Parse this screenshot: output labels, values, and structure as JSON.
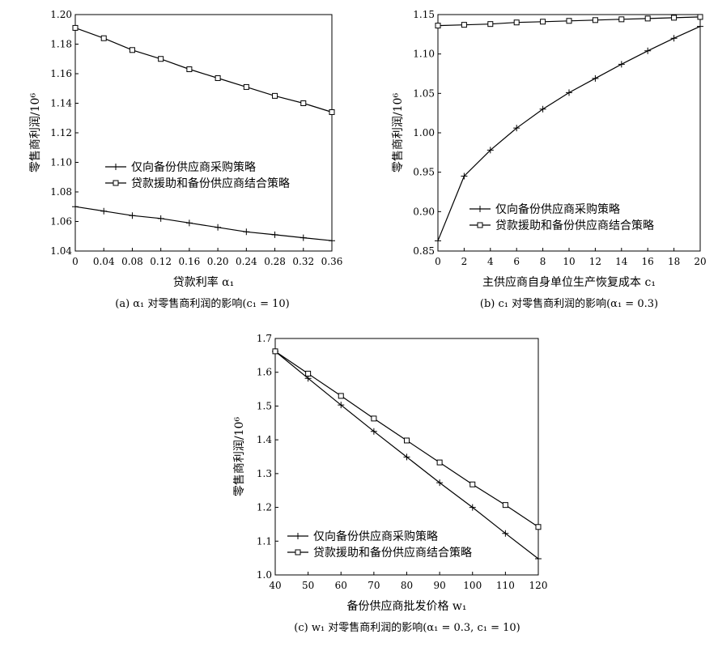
{
  "chart_data": [
    {
      "type": "line",
      "caption": "(a) α₁ 对零售商利润的影响(c₁ = 10)",
      "xlabel": "贷款利率 α₁",
      "ylabel": "零售商利润/10⁶",
      "xlim": [
        0,
        0.36
      ],
      "ylim": [
        1.04,
        1.2
      ],
      "xticks": [
        "0",
        "0.04",
        "0.08",
        "0.12",
        "0.16",
        "0.20",
        "0.24",
        "0.28",
        "0.32",
        "0.36"
      ],
      "yticks": [
        "1.04",
        "1.06",
        "1.08",
        "1.10",
        "1.12",
        "1.14",
        "1.16",
        "1.18",
        "1.20"
      ],
      "legend_position": "center",
      "series": [
        {
          "name": "仅向备份供应商采购策略",
          "marker": "plus",
          "x": [
            0,
            0.04,
            0.08,
            0.12,
            0.16,
            0.2,
            0.24,
            0.28,
            0.32,
            0.36
          ],
          "y": [
            1.07,
            1.067,
            1.064,
            1.062,
            1.059,
            1.056,
            1.053,
            1.051,
            1.049,
            1.047
          ]
        },
        {
          "name": "贷款援助和备份供应商结合策略",
          "marker": "square",
          "x": [
            0,
            0.04,
            0.08,
            0.12,
            0.16,
            0.2,
            0.24,
            0.28,
            0.32,
            0.36
          ],
          "y": [
            1.191,
            1.184,
            1.176,
            1.17,
            1.163,
            1.157,
            1.151,
            1.145,
            1.14,
            1.134
          ]
        }
      ]
    },
    {
      "type": "line",
      "caption": "(b) c₁ 对零售商利润的影响(α₁ = 0.3)",
      "xlabel": "主供应商自身单位生产恢复成本 c₁",
      "ylabel": "零售商利润/10⁶",
      "xlim": [
        0,
        20
      ],
      "ylim": [
        0.85,
        1.15
      ],
      "xticks": [
        "0",
        "2",
        "4",
        "6",
        "8",
        "10",
        "12",
        "14",
        "16",
        "18",
        "20"
      ],
      "yticks": [
        "0.85",
        "0.90",
        "0.95",
        "1.00",
        "1.05",
        "1.10",
        "1.15"
      ],
      "legend_position": "lower-right",
      "series": [
        {
          "name": "仅向备份供应商采购策略",
          "marker": "plus",
          "x": [
            0,
            2,
            4,
            6,
            8,
            10,
            12,
            14,
            16,
            18,
            20
          ],
          "y": [
            0.863,
            0.945,
            0.978,
            1.006,
            1.03,
            1.051,
            1.069,
            1.087,
            1.104,
            1.12,
            1.135
          ]
        },
        {
          "name": "贷款援助和备份供应商结合策略",
          "marker": "square",
          "x": [
            0,
            2,
            4,
            6,
            8,
            10,
            12,
            14,
            16,
            18,
            20
          ],
          "y": [
            1.136,
            1.137,
            1.138,
            1.14,
            1.141,
            1.142,
            1.143,
            1.144,
            1.145,
            1.146,
            1.147
          ]
        }
      ]
    },
    {
      "type": "line",
      "caption": "(c) w₁ 对零售商利润的影响(α₁ = 0.3, c₁ = 10)",
      "xlabel": "备份供应商批发价格 w₁",
      "ylabel": "零售商利润/10⁶",
      "xlim": [
        40,
        120
      ],
      "ylim": [
        1.0,
        1.7
      ],
      "xticks": [
        "40",
        "50",
        "60",
        "70",
        "80",
        "90",
        "100",
        "110",
        "120"
      ],
      "yticks": [
        "1.0",
        "1.1",
        "1.2",
        "1.3",
        "1.4",
        "1.5",
        "1.6",
        "1.7"
      ],
      "legend_position": "lower-left",
      "series": [
        {
          "name": "仅向备份供应商采购策略",
          "marker": "plus",
          "x": [
            40,
            50,
            60,
            70,
            80,
            90,
            100,
            110,
            120
          ],
          "y": [
            1.662,
            1.582,
            1.503,
            1.425,
            1.349,
            1.273,
            1.2,
            1.123,
            1.048
          ]
        },
        {
          "name": "贷款援助和备份供应商结合策略",
          "marker": "square",
          "x": [
            40,
            50,
            60,
            70,
            80,
            90,
            100,
            110,
            120
          ],
          "y": [
            1.662,
            1.596,
            1.53,
            1.463,
            1.398,
            1.333,
            1.268,
            1.207,
            1.142
          ]
        }
      ]
    }
  ]
}
